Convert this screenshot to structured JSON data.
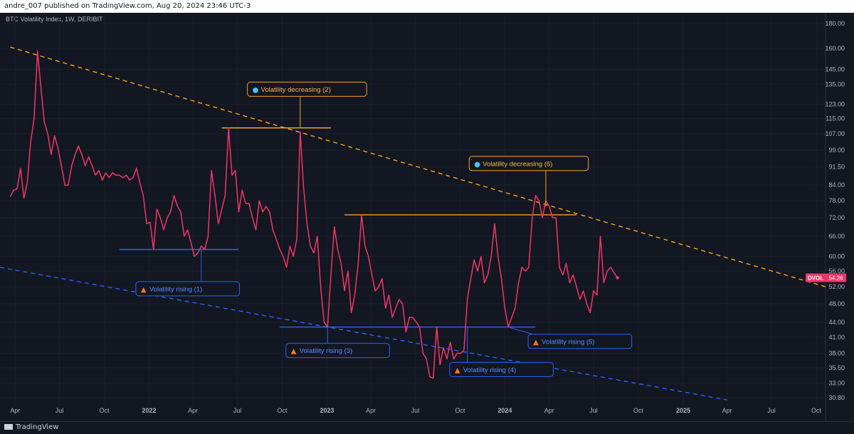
{
  "header": {
    "published_text": "andre_007 published on TradingView.com, Aug 20, 2024 23:46 UTC-3"
  },
  "footer": {
    "brand": "TradingView"
  },
  "colors": {
    "background": "#131722",
    "series": "#f23668",
    "resistance": "#f7a21b",
    "support": "#2962ff",
    "axis_text": "#b2b5be"
  },
  "chart_data": {
    "type": "line",
    "title": "BTC Volatility Index, 1W, DERIBIT",
    "y_scale": "log",
    "ylim": [
      29.5,
      188
    ],
    "y_ticks": [
      180.0,
      160.0,
      145.0,
      135.0,
      123.0,
      115.0,
      107.0,
      99.0,
      91.5,
      84.0,
      78.0,
      72.0,
      66.0,
      60.0,
      56.0,
      52.0,
      48.0,
      44.0,
      41.0,
      38.0,
      35.5,
      33.0,
      30.8
    ],
    "y_tick_labels": [
      "180.00",
      "160.00",
      "145.00",
      "135.00",
      "123.00",
      "115.00",
      "107.00",
      "99.00",
      "91.50",
      "84.00",
      "78.00",
      "72.00",
      "66.00",
      "60.00",
      "56.00",
      "52.00",
      "48.00",
      "44.00",
      "41.00",
      "38.00",
      "35.50",
      "33.00",
      "30.80"
    ],
    "x_range": [
      "2021-03-01",
      "2025-10-20"
    ],
    "x_ticks": [
      {
        "date": "2021-04-01",
        "label": "Apr"
      },
      {
        "date": "2021-07-01",
        "label": "Jul"
      },
      {
        "date": "2021-10-01",
        "label": "Oct"
      },
      {
        "date": "2022-01-01",
        "label": "2022"
      },
      {
        "date": "2022-04-01",
        "label": "Apr"
      },
      {
        "date": "2022-07-01",
        "label": "Jul"
      },
      {
        "date": "2022-10-01",
        "label": "Oct"
      },
      {
        "date": "2023-01-01",
        "label": "2023"
      },
      {
        "date": "2023-04-01",
        "label": "Apr"
      },
      {
        "date": "2023-07-01",
        "label": "Jul"
      },
      {
        "date": "2023-10-01",
        "label": "Oct"
      },
      {
        "date": "2024-01-01",
        "label": "2024"
      },
      {
        "date": "2024-04-01",
        "label": "Apr"
      },
      {
        "date": "2024-07-01",
        "label": "Jul"
      },
      {
        "date": "2024-10-01",
        "label": "Oct"
      },
      {
        "date": "2025-01-01",
        "label": "2025"
      },
      {
        "date": "2025-04-01",
        "label": "Apr"
      },
      {
        "date": "2025-07-01",
        "label": "Jul"
      },
      {
        "date": "2025-10-01",
        "label": "Oct"
      }
    ],
    "series": [
      {
        "symbol": "DVOL",
        "last_value": "54.26",
        "points": [
          [
            "2021-03-22",
            79.5
          ],
          [
            "2021-03-29",
            82
          ],
          [
            "2021-04-05",
            82.5
          ],
          [
            "2021-04-12",
            91
          ],
          [
            "2021-04-19",
            79
          ],
          [
            "2021-04-26",
            85
          ],
          [
            "2021-05-03",
            103
          ],
          [
            "2021-05-10",
            115
          ],
          [
            "2021-05-17",
            158
          ],
          [
            "2021-05-24",
            133
          ],
          [
            "2021-05-31",
            113
          ],
          [
            "2021-06-07",
            107
          ],
          [
            "2021-06-14",
            97
          ],
          [
            "2021-06-21",
            106
          ],
          [
            "2021-06-28",
            100
          ],
          [
            "2021-07-05",
            92
          ],
          [
            "2021-07-12",
            84
          ],
          [
            "2021-07-19",
            84
          ],
          [
            "2021-07-26",
            92
          ],
          [
            "2021-08-02",
            97
          ],
          [
            "2021-08-09",
            101
          ],
          [
            "2021-08-16",
            97
          ],
          [
            "2021-08-23",
            92
          ],
          [
            "2021-08-30",
            96
          ],
          [
            "2021-09-06",
            92
          ],
          [
            "2021-09-13",
            88
          ],
          [
            "2021-09-20",
            90
          ],
          [
            "2021-09-27",
            86
          ],
          [
            "2021-10-04",
            89
          ],
          [
            "2021-10-11",
            87
          ],
          [
            "2021-10-18",
            89
          ],
          [
            "2021-10-25",
            88
          ],
          [
            "2021-11-01",
            88
          ],
          [
            "2021-11-08",
            87
          ],
          [
            "2021-11-15",
            88
          ],
          [
            "2021-11-22",
            86
          ],
          [
            "2021-11-29",
            87
          ],
          [
            "2021-12-06",
            91
          ],
          [
            "2021-12-13",
            85
          ],
          [
            "2021-12-20",
            80
          ],
          [
            "2021-12-27",
            70
          ],
          [
            "2022-01-03",
            70.5
          ],
          [
            "2022-01-10",
            62
          ],
          [
            "2022-01-17",
            75
          ],
          [
            "2022-01-24",
            72
          ],
          [
            "2022-01-31",
            68
          ],
          [
            "2022-02-07",
            72
          ],
          [
            "2022-02-14",
            74
          ],
          [
            "2022-02-21",
            80
          ],
          [
            "2022-02-28",
            76
          ],
          [
            "2022-03-07",
            74
          ],
          [
            "2022-03-14",
            66
          ],
          [
            "2022-03-21",
            68
          ],
          [
            "2022-03-28",
            64
          ],
          [
            "2022-04-04",
            60
          ],
          [
            "2022-04-11",
            61
          ],
          [
            "2022-04-18",
            63
          ],
          [
            "2022-04-25",
            62
          ],
          [
            "2022-05-02",
            66
          ],
          [
            "2022-05-09",
            90
          ],
          [
            "2022-05-16",
            80
          ],
          [
            "2022-05-23",
            70
          ],
          [
            "2022-05-30",
            75
          ],
          [
            "2022-06-06",
            80
          ],
          [
            "2022-06-13",
            110
          ],
          [
            "2022-06-20",
            88
          ],
          [
            "2022-06-27",
            90
          ],
          [
            "2022-07-04",
            74
          ],
          [
            "2022-07-11",
            82
          ],
          [
            "2022-07-18",
            77
          ],
          [
            "2022-07-25",
            77
          ],
          [
            "2022-08-01",
            72
          ],
          [
            "2022-08-08",
            68
          ],
          [
            "2022-08-15",
            78
          ],
          [
            "2022-08-22",
            74
          ],
          [
            "2022-08-29",
            76
          ],
          [
            "2022-09-05",
            74
          ],
          [
            "2022-09-12",
            68
          ],
          [
            "2022-09-19",
            65
          ],
          [
            "2022-09-26",
            62
          ],
          [
            "2022-10-03",
            60
          ],
          [
            "2022-10-10",
            57
          ],
          [
            "2022-10-17",
            63
          ],
          [
            "2022-10-24",
            60
          ],
          [
            "2022-10-31",
            65
          ],
          [
            "2022-11-07",
            108
          ],
          [
            "2022-11-14",
            83
          ],
          [
            "2022-11-21",
            70
          ],
          [
            "2022-11-28",
            63
          ],
          [
            "2022-12-05",
            61
          ],
          [
            "2022-12-12",
            66
          ],
          [
            "2022-12-19",
            52
          ],
          [
            "2022-12-26",
            44
          ],
          [
            "2023-01-02",
            43
          ],
          [
            "2023-01-09",
            55
          ],
          [
            "2023-01-16",
            69
          ],
          [
            "2023-01-23",
            62
          ],
          [
            "2023-01-30",
            58
          ],
          [
            "2023-02-06",
            51
          ],
          [
            "2023-02-13",
            56
          ],
          [
            "2023-02-20",
            46
          ],
          [
            "2023-02-27",
            50
          ],
          [
            "2023-03-06",
            58
          ],
          [
            "2023-03-13",
            73
          ],
          [
            "2023-03-20",
            63
          ],
          [
            "2023-03-27",
            60
          ],
          [
            "2023-04-03",
            55
          ],
          [
            "2023-04-10",
            51
          ],
          [
            "2023-04-17",
            52
          ],
          [
            "2023-04-24",
            54
          ],
          [
            "2023-05-01",
            47
          ],
          [
            "2023-05-08",
            50
          ],
          [
            "2023-05-15",
            45
          ],
          [
            "2023-05-22",
            47
          ],
          [
            "2023-05-29",
            49
          ],
          [
            "2023-06-05",
            48
          ],
          [
            "2023-06-12",
            42
          ],
          [
            "2023-06-19",
            45
          ],
          [
            "2023-06-26",
            45
          ],
          [
            "2023-07-03",
            44
          ],
          [
            "2023-07-10",
            43
          ],
          [
            "2023-07-17",
            38
          ],
          [
            "2023-07-24",
            37
          ],
          [
            "2023-07-31",
            34
          ],
          [
            "2023-08-07",
            33.8
          ],
          [
            "2023-08-14",
            43
          ],
          [
            "2023-08-21",
            36
          ],
          [
            "2023-08-28",
            39
          ],
          [
            "2023-09-04",
            37
          ],
          [
            "2023-09-11",
            40
          ],
          [
            "2023-09-18",
            37
          ],
          [
            "2023-09-25",
            38
          ],
          [
            "2023-10-02",
            38
          ],
          [
            "2023-10-09",
            38.5
          ],
          [
            "2023-10-16",
            49
          ],
          [
            "2023-10-23",
            54
          ],
          [
            "2023-10-30",
            59
          ],
          [
            "2023-11-06",
            56
          ],
          [
            "2023-11-13",
            60
          ],
          [
            "2023-11-20",
            53
          ],
          [
            "2023-11-27",
            55
          ],
          [
            "2023-12-04",
            60
          ],
          [
            "2023-12-11",
            70
          ],
          [
            "2023-12-18",
            60
          ],
          [
            "2023-12-25",
            54
          ],
          [
            "2024-01-01",
            47
          ],
          [
            "2024-01-08",
            43
          ],
          [
            "2024-01-15",
            45
          ],
          [
            "2024-01-22",
            47
          ],
          [
            "2024-01-29",
            53
          ],
          [
            "2024-02-05",
            57
          ],
          [
            "2024-02-12",
            56
          ],
          [
            "2024-02-19",
            57
          ],
          [
            "2024-02-26",
            72
          ],
          [
            "2024-03-04",
            80
          ],
          [
            "2024-03-11",
            78
          ],
          [
            "2024-03-18",
            72
          ],
          [
            "2024-03-25",
            78
          ],
          [
            "2024-04-01",
            76
          ],
          [
            "2024-04-08",
            72
          ],
          [
            "2024-04-15",
            72
          ],
          [
            "2024-04-22",
            57
          ],
          [
            "2024-04-29",
            55
          ],
          [
            "2024-05-06",
            58
          ],
          [
            "2024-05-13",
            53
          ],
          [
            "2024-05-20",
            55
          ],
          [
            "2024-05-27",
            52
          ],
          [
            "2024-06-03",
            49
          ],
          [
            "2024-06-10",
            51
          ],
          [
            "2024-06-17",
            48
          ],
          [
            "2024-06-24",
            46
          ],
          [
            "2024-07-01",
            51
          ],
          [
            "2024-07-08",
            50
          ],
          [
            "2024-07-15",
            66
          ],
          [
            "2024-07-22",
            53
          ],
          [
            "2024-07-29",
            56
          ],
          [
            "2024-08-05",
            57
          ],
          [
            "2024-08-12",
            55.5
          ],
          [
            "2024-08-19",
            54.26
          ]
        ]
      }
    ],
    "trendlines": [
      {
        "name": "upper-trendline",
        "style": "dashed",
        "color": "resistance",
        "from": [
          "2021-03-22",
          161
        ],
        "to": [
          "2025-10-20",
          52
        ]
      },
      {
        "name": "lower-trendline",
        "style": "dashed",
        "color": "support",
        "from": [
          "2021-03-01",
          57
        ],
        "to": [
          "2025-04-01",
          30.5
        ]
      }
    ],
    "levels": [
      {
        "name": "resistance-level-1",
        "color": "resistance",
        "value": 110,
        "from": "2022-05-30",
        "to": "2023-01-09"
      },
      {
        "name": "resistance-level-2",
        "color": "resistance",
        "value": 73,
        "from": "2023-02-06",
        "to": "2024-05-27"
      },
      {
        "name": "support-level-1",
        "color": "support",
        "value": 62,
        "from": "2021-11-01",
        "to": "2022-07-04"
      },
      {
        "name": "support-level-2",
        "color": "support",
        "value": 43,
        "from": "2022-09-26",
        "to": "2024-03-04"
      }
    ],
    "annotations": [
      {
        "text": "Volatility decreasing (2)",
        "icon": "droplets",
        "kind": "resistance",
        "box_date": "2022-11-21",
        "box_value": 132,
        "anchor_date": "2022-11-07",
        "anchor_value": 110
      },
      {
        "text": "Volatility decreasing (6)",
        "icon": "droplets",
        "kind": "resistance",
        "box_date": "2024-02-19",
        "box_value": 93,
        "anchor_date": "2024-03-25",
        "anchor_value": 76
      },
      {
        "text": "Volatility rising (1)",
        "icon": "flame",
        "kind": "support",
        "box_date": "2022-03-21",
        "box_value": 51.5,
        "anchor_date": "2022-04-18",
        "anchor_value": 62
      },
      {
        "text": "Volatility rising (3)",
        "icon": "flame",
        "kind": "support",
        "box_date": "2023-01-23",
        "box_value": 38.5,
        "anchor_date": "2023-01-02",
        "anchor_value": 43
      },
      {
        "text": "Volatility rising (4)",
        "icon": "flame",
        "kind": "support",
        "box_date": "2023-12-25",
        "box_value": 35.2,
        "anchor_date": "2023-10-16",
        "anchor_value": 43
      },
      {
        "text": "Volatility rising (5)",
        "icon": "flame",
        "kind": "support",
        "box_date": "2024-06-03",
        "box_value": 40.2,
        "anchor_date": "2024-01-08",
        "anchor_value": 43
      }
    ]
  }
}
